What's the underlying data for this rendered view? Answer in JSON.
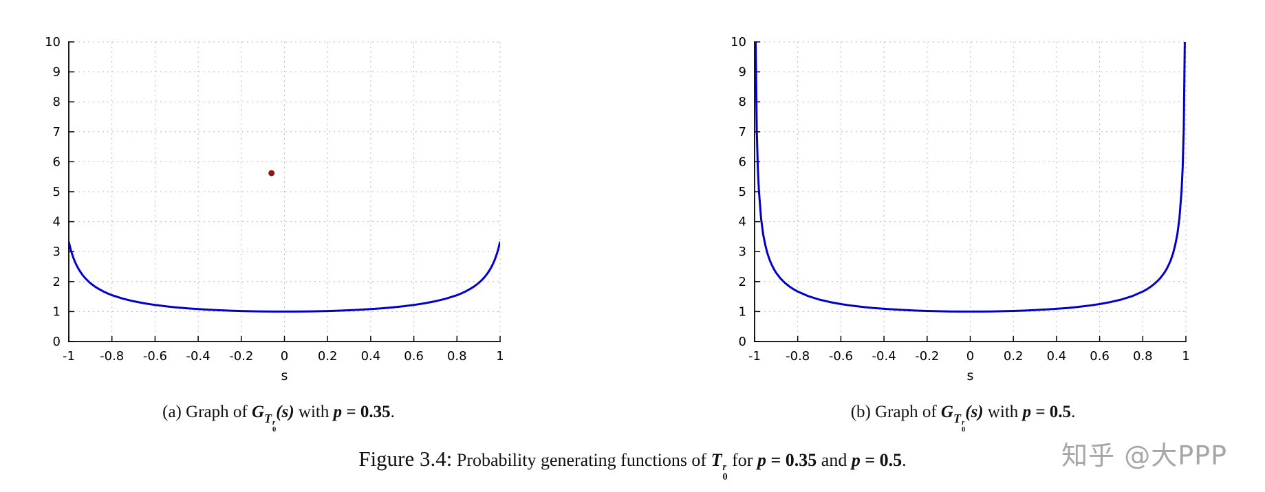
{
  "figure": {
    "watermark": "知乎 @大PPP",
    "caption": {
      "label": "Figure 3.4:",
      "body": "Probability generating functions of",
      "T": "T",
      "sup": "r",
      "sub": "0",
      "for_word": "for",
      "p1_var": "p",
      "p1_val": "= 0.35",
      "and_word": "and",
      "p2_var": "p",
      "p2_val": "= 0.5",
      "period": "."
    }
  },
  "charts": [
    {
      "subcaption": {
        "index": "(a)",
        "graph_of": "Graph of",
        "G": "G",
        "T": "T",
        "sup": "r",
        "sub": "0",
        "args": "(s)",
        "with_word": "with",
        "p_var": "p",
        "p_val": "= 0.35",
        "period": "."
      }
    },
    {
      "subcaption": {
        "index": "(b)",
        "graph_of": "Graph of",
        "G": "G",
        "T": "T",
        "sup": "r",
        "sub": "0",
        "args": "(s)",
        "with_word": "with",
        "p_var": "p",
        "p_val": "= 0.5",
        "period": "."
      }
    }
  ],
  "chart_data": [
    {
      "type": "line",
      "title": "Graph of G_{T_0^r}(s) with p = 0.35",
      "xlabel": "s",
      "ylabel": "",
      "xlim": [
        -1,
        1
      ],
      "ylim": [
        0,
        10
      ],
      "grid": true,
      "legend": "none",
      "xticks": [
        -1,
        -0.8,
        -0.6,
        -0.4,
        -0.2,
        0,
        0.2,
        0.4,
        0.6,
        0.8,
        1
      ],
      "xtick_labels": [
        "-1",
        "-0.8",
        "-0.6",
        "-0.4",
        "-0.2",
        "0",
        "0.2",
        "0.4",
        "0.6",
        "0.8",
        "1"
      ],
      "yticks": [
        0,
        1,
        2,
        3,
        4,
        5,
        6,
        7,
        8,
        9,
        10
      ],
      "ytick_labels": [
        "0",
        "1",
        "2",
        "3",
        "4",
        "5",
        "6",
        "7",
        "8",
        "9",
        "10"
      ],
      "series": [
        {
          "name": "G_{T_0^r}(s), p=0.35",
          "color": "#0000c8",
          "points": [
            [
              -1,
              3.333
            ],
            [
              -0.995,
              3.177
            ],
            [
              -0.99,
              3.041
            ],
            [
              -0.98,
              2.817
            ],
            [
              -0.97,
              2.637
            ],
            [
              -0.96,
              2.49
            ],
            [
              -0.95,
              2.365
            ],
            [
              -0.94,
              2.259
            ],
            [
              -0.93,
              2.167
            ],
            [
              -0.92,
              2.086
            ],
            [
              -0.91,
              2.014
            ],
            [
              -0.9,
              1.95
            ],
            [
              -0.88,
              1.84
            ],
            [
              -0.86,
              1.749
            ],
            [
              -0.84,
              1.672
            ],
            [
              -0.82,
              1.605
            ],
            [
              -0.8,
              1.547
            ],
            [
              -0.75,
              1.431
            ],
            [
              -0.7,
              1.343
            ],
            [
              -0.65,
              1.275
            ],
            [
              -0.6,
              1.22
            ],
            [
              -0.55,
              1.175
            ],
            [
              -0.5,
              1.138
            ],
            [
              -0.45,
              1.107
            ],
            [
              -0.4,
              1.082
            ],
            [
              -0.35,
              1.061
            ],
            [
              -0.3,
              1.044
            ],
            [
              -0.25,
              1.03
            ],
            [
              -0.2,
              1.019
            ],
            [
              -0.15,
              1.01
            ],
            [
              -0.1,
              1.005
            ],
            [
              -0.05,
              1.001
            ],
            [
              0,
              1
            ],
            [
              0.05,
              1.001
            ],
            [
              0.1,
              1.005
            ],
            [
              0.15,
              1.01
            ],
            [
              0.2,
              1.019
            ],
            [
              0.25,
              1.03
            ],
            [
              0.3,
              1.044
            ],
            [
              0.35,
              1.061
            ],
            [
              0.4,
              1.082
            ],
            [
              0.45,
              1.107
            ],
            [
              0.5,
              1.138
            ],
            [
              0.55,
              1.175
            ],
            [
              0.6,
              1.22
            ],
            [
              0.65,
              1.275
            ],
            [
              0.7,
              1.343
            ],
            [
              0.75,
              1.431
            ],
            [
              0.8,
              1.547
            ],
            [
              0.82,
              1.605
            ],
            [
              0.84,
              1.672
            ],
            [
              0.86,
              1.749
            ],
            [
              0.88,
              1.84
            ],
            [
              0.9,
              1.95
            ],
            [
              0.91,
              2.014
            ],
            [
              0.92,
              2.086
            ],
            [
              0.93,
              2.167
            ],
            [
              0.94,
              2.259
            ],
            [
              0.95,
              2.365
            ],
            [
              0.96,
              2.49
            ],
            [
              0.97,
              2.637
            ],
            [
              0.98,
              2.817
            ],
            [
              0.99,
              3.041
            ],
            [
              0.995,
              3.177
            ],
            [
              1,
              3.333
            ]
          ]
        }
      ],
      "markers": [
        {
          "x": -0.06,
          "y": 5.62,
          "color": "#8b1a1a"
        }
      ]
    },
    {
      "type": "line",
      "title": "Graph of G_{T_0^r}(s) with p = 0.5",
      "xlabel": "s",
      "ylabel": "",
      "xlim": [
        -1,
        1
      ],
      "ylim": [
        0,
        10
      ],
      "grid": true,
      "legend": "none",
      "xticks": [
        -1,
        -0.8,
        -0.6,
        -0.4,
        -0.2,
        0,
        0.2,
        0.4,
        0.6,
        0.8,
        1
      ],
      "xtick_labels": [
        "-1",
        "-0.8",
        "-0.6",
        "-0.4",
        "-0.2",
        "0",
        "0.2",
        "0.4",
        "0.6",
        "0.8",
        "1"
      ],
      "yticks": [
        0,
        1,
        2,
        3,
        4,
        5,
        6,
        7,
        8,
        9,
        10
      ],
      "ytick_labels": [
        "0",
        "1",
        "2",
        "3",
        "4",
        "5",
        "6",
        "7",
        "8",
        "9",
        "10"
      ],
      "series": [
        {
          "name": "G_{T_0^r}(s), p=0.5",
          "color": "#0000c8",
          "points": [
            [
              -0.9995,
              31.63
            ],
            [
              -0.999,
              22.37
            ],
            [
              -0.998,
              15.82
            ],
            [
              -0.997,
              12.91
            ],
            [
              -0.996,
              11.19
            ],
            [
              -0.995,
              10.03
            ],
            [
              -0.99,
              7.089
            ],
            [
              -0.985,
              5.795
            ],
            [
              -0.98,
              5.025
            ],
            [
              -0.97,
              4.113
            ],
            [
              -0.96,
              3.571
            ],
            [
              -0.95,
              3.203
            ],
            [
              -0.94,
              2.931
            ],
            [
              -0.93,
              2.721
            ],
            [
              -0.92,
              2.552
            ],
            [
              -0.91,
              2.412
            ],
            [
              -0.9,
              2.294
            ],
            [
              -0.88,
              2.106
            ],
            [
              -0.86,
              1.96
            ],
            [
              -0.84,
              1.843
            ],
            [
              -0.82,
              1.747
            ],
            [
              -0.8,
              1.667
            ],
            [
              -0.75,
              1.512
            ],
            [
              -0.7,
              1.4
            ],
            [
              -0.65,
              1.316
            ],
            [
              -0.6,
              1.25
            ],
            [
              -0.55,
              1.198
            ],
            [
              -0.5,
              1.155
            ],
            [
              -0.45,
              1.12
            ],
            [
              -0.4,
              1.091
            ],
            [
              -0.35,
              1.068
            ],
            [
              -0.3,
              1.048
            ],
            [
              -0.25,
              1.033
            ],
            [
              -0.2,
              1.021
            ],
            [
              -0.15,
              1.011
            ],
            [
              -0.1,
              1.005
            ],
            [
              -0.05,
              1.001
            ],
            [
              0,
              1
            ],
            [
              0.05,
              1.001
            ],
            [
              0.1,
              1.005
            ],
            [
              0.15,
              1.011
            ],
            [
              0.2,
              1.021
            ],
            [
              0.25,
              1.033
            ],
            [
              0.3,
              1.048
            ],
            [
              0.35,
              1.068
            ],
            [
              0.4,
              1.091
            ],
            [
              0.45,
              1.12
            ],
            [
              0.5,
              1.155
            ],
            [
              0.55,
              1.198
            ],
            [
              0.6,
              1.25
            ],
            [
              0.65,
              1.316
            ],
            [
              0.7,
              1.4
            ],
            [
              0.75,
              1.512
            ],
            [
              0.8,
              1.667
            ],
            [
              0.82,
              1.747
            ],
            [
              0.84,
              1.843
            ],
            [
              0.86,
              1.96
            ],
            [
              0.88,
              2.106
            ],
            [
              0.9,
              2.294
            ],
            [
              0.91,
              2.412
            ],
            [
              0.92,
              2.552
            ],
            [
              0.93,
              2.721
            ],
            [
              0.94,
              2.931
            ],
            [
              0.95,
              3.203
            ],
            [
              0.96,
              3.571
            ],
            [
              0.97,
              4.113
            ],
            [
              0.98,
              5.025
            ],
            [
              0.985,
              5.795
            ],
            [
              0.99,
              7.089
            ],
            [
              0.995,
              10.03
            ],
            [
              0.996,
              11.19
            ],
            [
              0.997,
              12.91
            ],
            [
              0.998,
              15.82
            ],
            [
              0.999,
              22.37
            ],
            [
              0.9995,
              31.63
            ]
          ]
        }
      ],
      "markers": []
    }
  ]
}
